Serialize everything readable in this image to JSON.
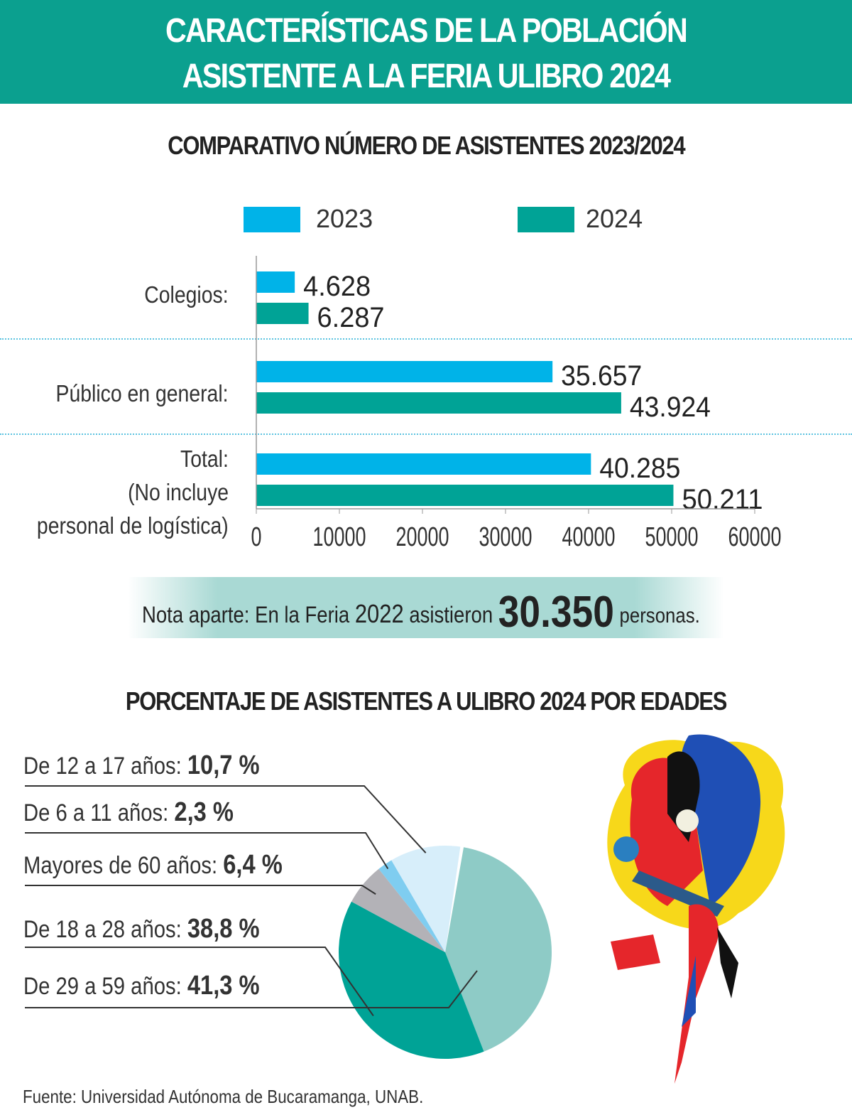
{
  "header": {
    "line1": "CARACTERÍSTICAS DE LA POBLACIÓN",
    "line2": "ASISTENTE  A LA FERIA ULIBRO 2024",
    "color": "#0ba08f"
  },
  "note": {
    "prefix": "Nota aparte: En la Feria",
    "year": "2022",
    "mid": "asistieron",
    "value": "30.350",
    "suffix": "personas."
  },
  "source": "Fuente: Universidad Autónoma de Bucaramanga, UNAB.",
  "chart_data": [
    {
      "type": "bar",
      "orientation": "horizontal",
      "title": "COMPARATIVO NÚMERO DE ASISTENTES 2023/2024",
      "categories": [
        "Colegios:",
        "Público en general:",
        "Total:\n(No incluye\npersonal de logística)"
      ],
      "category_lines": [
        [
          "Colegios:"
        ],
        [
          "Público en general:"
        ],
        [
          "Total:",
          "(No incluye",
          "personal de logística)"
        ]
      ],
      "series": [
        {
          "name": "2023",
          "color": "#00b3e8",
          "values": [
            4628,
            35657,
            40285
          ],
          "labels": [
            "4.628",
            "35.657",
            "40.285"
          ]
        },
        {
          "name": "2024",
          "color": "#00a396",
          "values": [
            6287,
            43924,
            50211
          ],
          "labels": [
            "6.287",
            "43.924",
            "50.211"
          ]
        }
      ],
      "xlim": [
        0,
        60000
      ],
      "xticks": [
        "0",
        "10000",
        "20000",
        "30000",
        "40000",
        "50000",
        "60000"
      ],
      "legend": "top"
    },
    {
      "type": "pie",
      "title": "PORCENTAJE DE ASISTENTES A ULIBRO 2024 POR EDADES",
      "slices": [
        {
          "label": "De 29 a 59 años:",
          "value": 41.3,
          "text": "41,3 %",
          "color": "#8ecbc6"
        },
        {
          "label": "De 18 a 28 años:",
          "value": 38.8,
          "text": "38,8 %",
          "color": "#00a396"
        },
        {
          "label": "Mayores de 60 años:",
          "value": 6.4,
          "text": "6,4 %",
          "color": "#b3b2b7"
        },
        {
          "label": "De 6 a 11 años:",
          "value": 2.3,
          "text": "2,3 %",
          "color": "#7fcdf0"
        },
        {
          "label": "De 12 a 17 años:",
          "value": 10.7,
          "text": "10,7 %",
          "color": "#d7eefa"
        }
      ]
    }
  ]
}
